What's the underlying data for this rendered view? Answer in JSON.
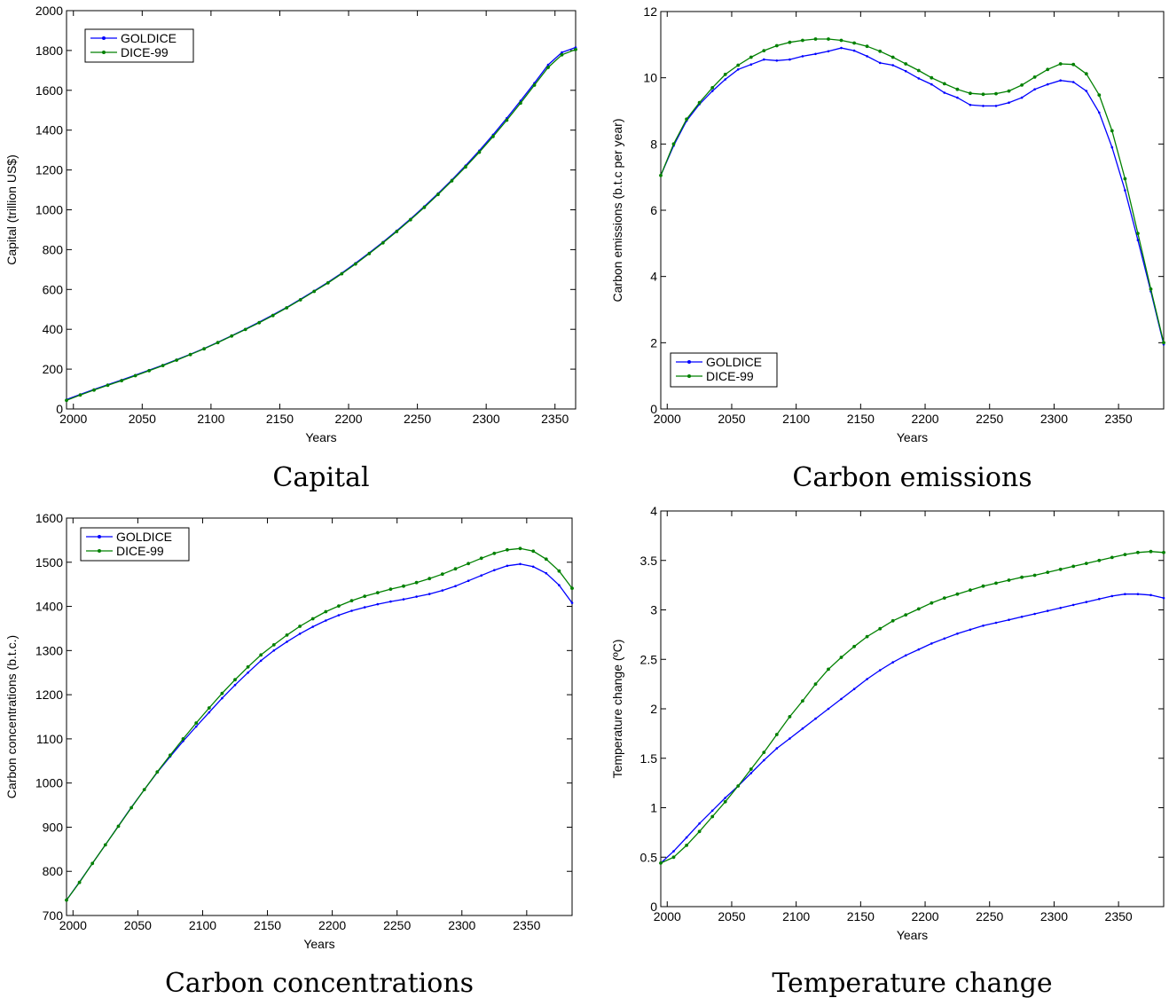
{
  "colors": {
    "goldice": "#0000ff",
    "dice99": "#008000"
  },
  "chart_data": [
    {
      "type": "line",
      "caption": "Capital",
      "xlabel": "Years",
      "ylabel": "Capital (trillion US$)",
      "xlim": [
        1995,
        2365
      ],
      "ylim": [
        0,
        2000
      ],
      "xticks": [
        2000,
        2050,
        2100,
        2150,
        2200,
        2250,
        2300,
        2350
      ],
      "yticks": [
        0,
        200,
        400,
        600,
        800,
        1000,
        1200,
        1400,
        1600,
        1800,
        2000
      ],
      "legend": "top-left",
      "x": [
        1995,
        2005,
        2015,
        2025,
        2035,
        2045,
        2055,
        2065,
        2075,
        2085,
        2095,
        2105,
        2115,
        2125,
        2135,
        2145,
        2155,
        2165,
        2175,
        2185,
        2195,
        2205,
        2215,
        2225,
        2235,
        2245,
        2255,
        2265,
        2275,
        2285,
        2295,
        2305,
        2315,
        2325,
        2335,
        2345,
        2355,
        2365
      ],
      "series": [
        {
          "name": "GOLDICE",
          "values": [
            47,
            73,
            98,
            122,
            145,
            170,
            195,
            220,
            247,
            275,
            304,
            335,
            368,
            401,
            436,
            472,
            510,
            551,
            593,
            636,
            682,
            732,
            784,
            838,
            895,
            954,
            1017,
            1082,
            1150,
            1222,
            1297,
            1377,
            1460,
            1547,
            1636,
            1728,
            1790,
            1815
          ]
        },
        {
          "name": "DICE-99",
          "values": [
            43,
            70,
            95,
            119,
            142,
            167,
            192,
            218,
            245,
            273,
            302,
            333,
            366,
            399,
            433,
            469,
            508,
            548,
            590,
            633,
            679,
            728,
            780,
            834,
            891,
            950,
            1012,
            1077,
            1145,
            1215,
            1289,
            1368,
            1450,
            1536,
            1626,
            1715,
            1778,
            1805
          ]
        }
      ]
    },
    {
      "type": "line",
      "caption": "Carbon emissions",
      "xlabel": "Years",
      "ylabel": "Carbon emissions (b.t.c per year)",
      "xlim": [
        1995,
        2385
      ],
      "ylim": [
        0,
        12
      ],
      "xticks": [
        2000,
        2050,
        2100,
        2150,
        2200,
        2250,
        2300,
        2350
      ],
      "yticks": [
        0,
        2,
        4,
        6,
        8,
        10,
        12
      ],
      "legend": "bottom-left",
      "x": [
        1995,
        2005,
        2015,
        2025,
        2035,
        2045,
        2055,
        2065,
        2075,
        2085,
        2095,
        2105,
        2115,
        2125,
        2135,
        2145,
        2155,
        2165,
        2175,
        2185,
        2195,
        2205,
        2215,
        2225,
        2235,
        2245,
        2255,
        2265,
        2275,
        2285,
        2295,
        2305,
        2315,
        2325,
        2335,
        2345,
        2355,
        2365,
        2375,
        2385
      ],
      "series": [
        {
          "name": "GOLDICE",
          "values": [
            7.05,
            7.95,
            8.7,
            9.2,
            9.6,
            9.95,
            10.25,
            10.4,
            10.55,
            10.52,
            10.55,
            10.65,
            10.72,
            10.8,
            10.9,
            10.82,
            10.65,
            10.45,
            10.38,
            10.2,
            9.98,
            9.8,
            9.55,
            9.4,
            9.18,
            9.15,
            9.15,
            9.25,
            9.4,
            9.65,
            9.8,
            9.92,
            9.87,
            9.6,
            8.95,
            7.9,
            6.6,
            5.1,
            3.55,
            1.95
          ]
        },
        {
          "name": "DICE-99",
          "values": [
            7.05,
            8.0,
            8.75,
            9.25,
            9.7,
            10.1,
            10.38,
            10.62,
            10.82,
            10.97,
            11.07,
            11.13,
            11.17,
            11.17,
            11.13,
            11.05,
            10.95,
            10.8,
            10.62,
            10.42,
            10.22,
            10.0,
            9.82,
            9.65,
            9.53,
            9.5,
            9.52,
            9.6,
            9.78,
            10.02,
            10.25,
            10.42,
            10.4,
            10.12,
            9.48,
            8.4,
            6.95,
            5.3,
            3.62,
            2.0
          ]
        }
      ]
    },
    {
      "type": "line",
      "caption": "Carbon concentrations",
      "xlabel": "Years",
      "ylabel": "Carbon concentrations (b.t.c.)",
      "xlim": [
        1995,
        2385
      ],
      "ylim": [
        700,
        1600
      ],
      "xticks": [
        2000,
        2050,
        2100,
        2150,
        2200,
        2250,
        2300,
        2350
      ],
      "yticks": [
        700,
        800,
        900,
        1000,
        1100,
        1200,
        1300,
        1400,
        1500,
        1600
      ],
      "legend": "top-left",
      "x": [
        1995,
        2005,
        2015,
        2025,
        2035,
        2045,
        2055,
        2065,
        2075,
        2085,
        2095,
        2105,
        2115,
        2125,
        2135,
        2145,
        2155,
        2165,
        2175,
        2185,
        2195,
        2205,
        2215,
        2225,
        2235,
        2245,
        2255,
        2265,
        2275,
        2285,
        2295,
        2305,
        2315,
        2325,
        2335,
        2345,
        2355,
        2365,
        2375,
        2385
      ],
      "series": [
        {
          "name": "GOLDICE",
          "values": [
            735,
            776,
            818,
            860,
            903,
            945,
            985,
            1024,
            1060,
            1095,
            1128,
            1160,
            1192,
            1222,
            1250,
            1277,
            1300,
            1320,
            1338,
            1354,
            1368,
            1380,
            1390,
            1398,
            1405,
            1411,
            1416,
            1422,
            1428,
            1436,
            1446,
            1458,
            1470,
            1482,
            1492,
            1496,
            1490,
            1475,
            1448,
            1408
          ]
        },
        {
          "name": "DICE-99",
          "values": [
            735,
            775,
            818,
            860,
            902,
            944,
            985,
            1025,
            1063,
            1100,
            1136,
            1170,
            1203,
            1234,
            1263,
            1290,
            1313,
            1335,
            1355,
            1372,
            1388,
            1401,
            1413,
            1423,
            1431,
            1439,
            1446,
            1454,
            1463,
            1473,
            1485,
            1497,
            1509,
            1520,
            1528,
            1531,
            1525,
            1507,
            1480,
            1441
          ]
        }
      ]
    },
    {
      "type": "line",
      "caption": "Temperature change",
      "xlabel": "Years",
      "ylabel": "Temperature change (ºC)",
      "xlim": [
        1995,
        2385
      ],
      "ylim": [
        0,
        4
      ],
      "xticks": [
        2000,
        2050,
        2100,
        2150,
        2200,
        2250,
        2300,
        2350
      ],
      "yticks": [
        0,
        0.5,
        1,
        1.5,
        2,
        2.5,
        3,
        3.5,
        4
      ],
      "x": [
        1995,
        2005,
        2015,
        2025,
        2035,
        2045,
        2055,
        2065,
        2075,
        2085,
        2095,
        2105,
        2115,
        2125,
        2135,
        2145,
        2155,
        2165,
        2175,
        2185,
        2195,
        2205,
        2215,
        2225,
        2235,
        2245,
        2255,
        2265,
        2275,
        2285,
        2295,
        2305,
        2315,
        2325,
        2335,
        2345,
        2355,
        2365,
        2375,
        2385
      ],
      "series": [
        {
          "name": "GOLDICE",
          "values": [
            0.44,
            0.56,
            0.7,
            0.84,
            0.97,
            1.1,
            1.22,
            1.35,
            1.48,
            1.6,
            1.7,
            1.8,
            1.9,
            2.0,
            2.1,
            2.2,
            2.3,
            2.39,
            2.47,
            2.54,
            2.6,
            2.66,
            2.71,
            2.76,
            2.8,
            2.84,
            2.87,
            2.9,
            2.93,
            2.96,
            2.99,
            3.02,
            3.05,
            3.08,
            3.11,
            3.14,
            3.16,
            3.16,
            3.15,
            3.12
          ]
        },
        {
          "name": "DICE-99",
          "values": [
            0.44,
            0.5,
            0.62,
            0.76,
            0.91,
            1.06,
            1.22,
            1.39,
            1.56,
            1.74,
            1.92,
            2.08,
            2.25,
            2.4,
            2.52,
            2.63,
            2.73,
            2.81,
            2.89,
            2.95,
            3.01,
            3.07,
            3.12,
            3.16,
            3.2,
            3.24,
            3.27,
            3.3,
            3.33,
            3.35,
            3.38,
            3.41,
            3.44,
            3.47,
            3.5,
            3.53,
            3.56,
            3.58,
            3.59,
            3.58
          ]
        }
      ]
    }
  ]
}
